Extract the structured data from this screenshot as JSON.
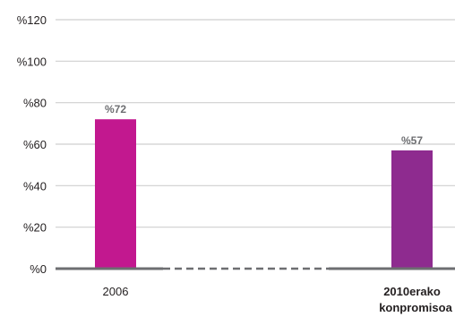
{
  "chart_data": {
    "type": "bar",
    "title": "",
    "xlabel": "",
    "ylabel": "",
    "ylim": [
      0,
      120
    ],
    "yticks": [
      0,
      20,
      40,
      60,
      80,
      100,
      120
    ],
    "ytick_labels": [
      "%0",
      "%20",
      "%40",
      "%60",
      "%80",
      "%100",
      "%120"
    ],
    "categories": [
      "2006",
      "2010erako konpromisoa"
    ],
    "category_bold": [
      false,
      true
    ],
    "values": [
      72,
      57
    ],
    "data_labels": [
      "%72",
      "%57"
    ],
    "bar_colors": [
      "#c2188f",
      "#8e2b8f"
    ],
    "grid": true,
    "connector_style": "dashed",
    "legend": "none"
  },
  "colors": {
    "grid": "#cfcfcf",
    "baseline": "#6d6e71",
    "connector": "#6d6e71"
  }
}
